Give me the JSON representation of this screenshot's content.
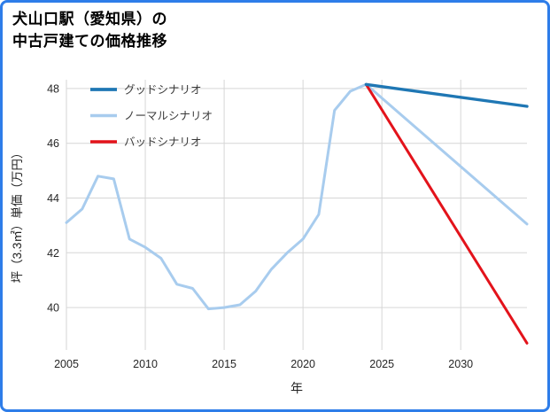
{
  "frame": {
    "border_color": "#2e7de9"
  },
  "title": {
    "line1": "犬山口駅（愛知県）の",
    "line2": "中古戸建ての価格推移"
  },
  "colors": {
    "grid": "#d6d6d6",
    "tick_text": "#262626",
    "legend_text": "#3a3a3a",
    "axis_label_text": "#1f1f1f"
  },
  "chart_data": {
    "type": "line",
    "title": "犬山口駅（愛知県）の中古戸建ての価格推移",
    "xlabel": "年",
    "ylabel": "坪（3.3㎡）単価（万円）",
    "xlim": [
      2005,
      2034.2
    ],
    "ylim": [
      38.45,
      48.32
    ],
    "xticks": [
      2005,
      2010,
      2015,
      2020,
      2025,
      2030
    ],
    "yticks": [
      40,
      42,
      44,
      46,
      48
    ],
    "grid": true,
    "legend_position": "upper-left",
    "series": [
      {
        "name": "グッドシナリオ",
        "color": "#1f77b4",
        "width": 3.4,
        "x": [
          2024,
          2034.2
        ],
        "y": [
          48.15,
          47.35
        ]
      },
      {
        "name": "ノーマルシナリオ",
        "color": "#a8ccee",
        "width": 3,
        "x": [
          2005,
          2006,
          2007,
          2008,
          2009,
          2010,
          2011,
          2012,
          2013,
          2014,
          2015,
          2016,
          2017,
          2018,
          2019,
          2020,
          2021,
          2022,
          2023,
          2024,
          2034.2
        ],
        "y": [
          43.1,
          43.6,
          44.8,
          44.7,
          42.5,
          42.2,
          41.8,
          40.85,
          40.7,
          39.95,
          40.0,
          40.1,
          40.6,
          41.4,
          42.0,
          42.5,
          43.4,
          47.2,
          47.9,
          48.15,
          43.05
        ]
      },
      {
        "name": "バッドシナリオ",
        "color": "#e3131b",
        "width": 3,
        "x": [
          2024,
          2034.2
        ],
        "y": [
          48.15,
          38.7
        ]
      }
    ]
  }
}
